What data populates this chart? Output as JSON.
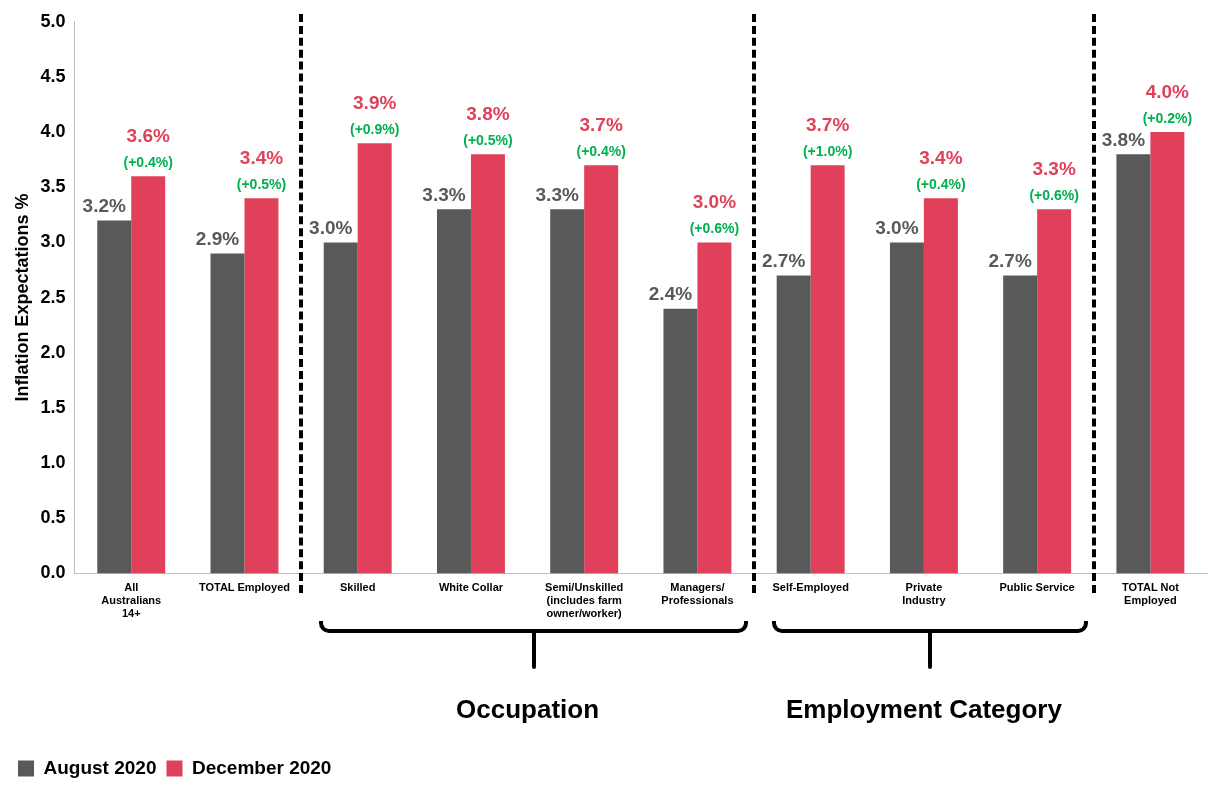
{
  "chart_data": {
    "type": "bar",
    "ylabel": "Inflation Expectations %",
    "categories": [
      "All Australians 14+",
      "TOTAL Employed",
      "Skilled",
      "White Collar",
      "Semi/Unskilled (includes farm owner/worker)",
      "Managers/ Professionals",
      "Self-Employed",
      "Private Industry",
      "Public Service",
      "TOTAL Not Employed"
    ],
    "series": [
      {
        "name": "August 2020",
        "color": "#595959",
        "values": [
          3.2,
          2.9,
          3.0,
          3.3,
          3.3,
          2.4,
          2.7,
          3.0,
          2.7,
          3.8
        ],
        "value_labels": [
          "3.2%",
          "2.9%",
          "3.0%",
          "3.3%",
          "3.3%",
          "2.4%",
          "2.7%",
          "3.0%",
          "2.7%",
          "3.8%"
        ]
      },
      {
        "name": "December 2020",
        "color": "#e0405a",
        "values": [
          3.6,
          3.4,
          3.9,
          3.8,
          3.7,
          3.0,
          3.7,
          3.4,
          3.3,
          4.0
        ],
        "value_labels": [
          "3.6%",
          "3.4%",
          "3.9%",
          "3.8%",
          "3.7%",
          "3.0%",
          "3.7%",
          "3.4%",
          "3.3%",
          "4.0%"
        ]
      }
    ],
    "ylim": [
      0,
      5
    ],
    "yticks": [
      {
        "value": 0,
        "label": "0.0"
      },
      0.5,
      {
        "value": 1,
        "label": "1.0"
      },
      1.5,
      {
        "value": 2,
        "label": "2.0"
      },
      2.5,
      {
        "value": 3,
        "label": "3.0"
      },
      3.5,
      {
        "value": 4,
        "label": "4.0"
      },
      4.5,
      {
        "value": 5,
        "label": "5.0"
      }
    ],
    "grid": false,
    "legend": "bottom",
    "annotations": [
      "Occupation",
      "Employment Category",
      {
        "text": "(+0.4%)",
        "x": "All Australians 14+",
        "y": 3.6
      },
      {
        "text": "(+0.5%)",
        "x": "TOTAL Employed",
        "y": 3.4
      },
      {
        "text": "(+0.9%)",
        "x": "Skilled",
        "y": 3.9
      },
      {
        "text": "(+0.5%)",
        "x": "White Collar",
        "y": 3.8
      },
      {
        "text": "(+0.4%)",
        "x": "Semi/Unskilled (includes farm owner/worker)",
        "y": 3.7
      },
      {
        "text": "(+0.6%)",
        "x": "Managers/ Professionals",
        "y": 3.0
      },
      {
        "text": "(+1.0%)",
        "x": "Self-Employed",
        "y": 3.7
      },
      {
        "text": "(+0.4%)",
        "x": "Private Industry",
        "y": 3.4
      },
      {
        "text": "(+0.6%)",
        "x": "Public Service",
        "y": 3.3
      },
      {
        "text": "(+0.2%)",
        "x": "TOTAL Not Employed",
        "y": 4.0
      }
    ]
  }
}
